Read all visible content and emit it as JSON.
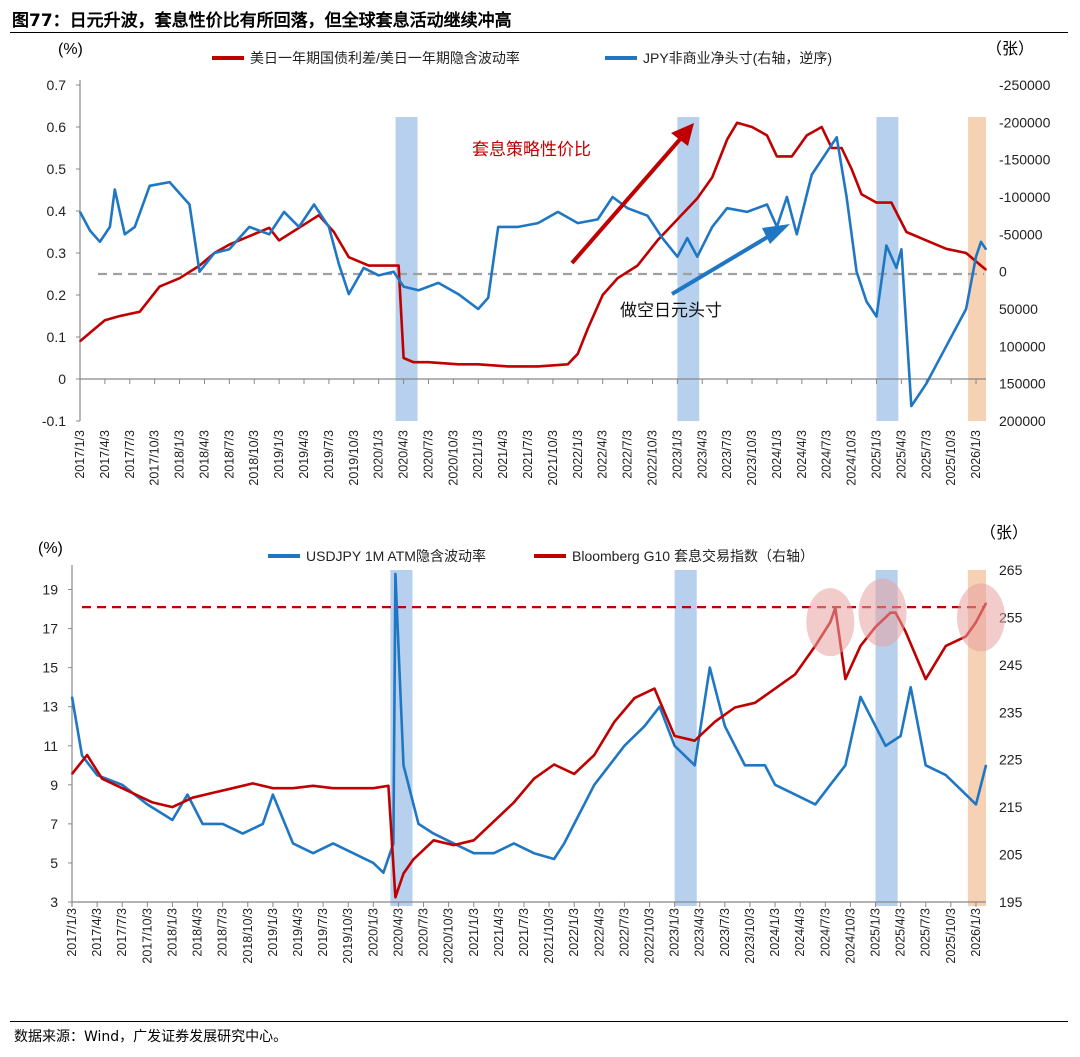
{
  "figure": {
    "title": "图77：日元升波，套息性价比有所回落，但全球套息活动继续冲高",
    "source": "数据来源：Wind，广发证券发展研究中心。"
  },
  "colors": {
    "red": "#c00000",
    "blue": "#1f77c4",
    "shade_blue": "#a9c8ea",
    "shade_orange": "#f5c9a6",
    "dash_gray": "#a0a0a0",
    "circle": "#e8a0a0"
  },
  "chart_data": [
    {
      "type": "line",
      "title": "",
      "left_unit": "(%)",
      "right_unit": "（张）",
      "ylim": [
        -0.1,
        0.7
      ],
      "yticks": [
        "0.7",
        "0.6",
        "0.5",
        "0.4",
        "0.3",
        "0.2",
        "0.1",
        "0",
        "-0.1"
      ],
      "y2lim": [
        200000,
        -250000
      ],
      "y2ticks": [
        "-250000",
        "-200000",
        "-150000",
        "-100000",
        "-50000",
        "0",
        "50000",
        "100000",
        "150000",
        "200000"
      ],
      "x_ticks": [
        "2017/1/3",
        "2017/4/3",
        "2017/7/3",
        "2017/10/3",
        "2018/1/3",
        "2018/4/3",
        "2018/7/3",
        "2018/10/3",
        "2019/1/3",
        "2019/4/3",
        "2019/7/3",
        "2019/10/3",
        "2020/1/3",
        "2020/4/3",
        "2020/7/3",
        "2020/10/3",
        "2021/1/3",
        "2021/4/3",
        "2021/7/3",
        "2021/10/3",
        "2022/1/3",
        "2022/4/3",
        "2022/7/3",
        "2022/10/3",
        "2023/1/3",
        "2023/4/3",
        "2023/7/3",
        "2023/10/3",
        "2024/1/3",
        "2024/4/3",
        "2024/7/3",
        "2024/10/3",
        "2025/1/3",
        "2025/4/3",
        "2025/7/3",
        "2025/10/3",
        "2026/1/3"
      ],
      "series": [
        {
          "name": "美日一年期国债利差/美日一年期隐含波动率",
          "axis": "left",
          "x": [
            2017.0,
            2017.1,
            2017.25,
            2017.4,
            2017.6,
            2017.8,
            2018.0,
            2018.2,
            2018.35,
            2018.5,
            2018.7,
            2018.9,
            2019.0,
            2019.2,
            2019.4,
            2019.55,
            2019.7,
            2019.9,
            2020.0,
            2020.15,
            2020.2,
            2020.25,
            2020.35,
            2020.5,
            2020.8,
            2021.0,
            2021.3,
            2021.6,
            2021.9,
            2022.0,
            2022.1,
            2022.25,
            2022.4,
            2022.6,
            2022.8,
            2023.0,
            2023.2,
            2023.35,
            2023.5,
            2023.6,
            2023.75,
            2023.9,
            2024.0,
            2024.15,
            2024.3,
            2024.45,
            2024.55,
            2024.65,
            2024.75,
            2024.85,
            2025.0,
            2025.15,
            2025.3,
            2025.5,
            2025.7,
            2025.9,
            2026.05,
            2026.1
          ],
          "values": [
            0.09,
            0.11,
            0.14,
            0.15,
            0.16,
            0.22,
            0.24,
            0.27,
            0.3,
            0.32,
            0.34,
            0.36,
            0.33,
            0.36,
            0.39,
            0.35,
            0.29,
            0.27,
            0.27,
            0.27,
            0.27,
            0.05,
            0.04,
            0.04,
            0.035,
            0.035,
            0.03,
            0.03,
            0.035,
            0.06,
            0.12,
            0.2,
            0.24,
            0.27,
            0.33,
            0.38,
            0.43,
            0.48,
            0.57,
            0.61,
            0.6,
            0.58,
            0.53,
            0.53,
            0.58,
            0.6,
            0.55,
            0.55,
            0.5,
            0.44,
            0.42,
            0.42,
            0.35,
            0.33,
            0.31,
            0.3,
            0.27,
            0.26
          ]
        },
        {
          "name": "JPY非商业净头寸(右轴，逆序)",
          "axis": "right",
          "x": [
            2017.0,
            2017.1,
            2017.2,
            2017.3,
            2017.35,
            2017.45,
            2017.55,
            2017.7,
            2017.9,
            2018.1,
            2018.2,
            2018.35,
            2018.5,
            2018.7,
            2018.9,
            2019.05,
            2019.2,
            2019.35,
            2019.5,
            2019.6,
            2019.7,
            2019.85,
            2020.0,
            2020.15,
            2020.25,
            2020.4,
            2020.6,
            2020.8,
            2021.0,
            2021.1,
            2021.2,
            2021.4,
            2021.6,
            2021.8,
            2022.0,
            2022.2,
            2022.35,
            2022.5,
            2022.7,
            2022.85,
            2023.0,
            2023.1,
            2023.2,
            2023.35,
            2023.5,
            2023.7,
            2023.9,
            2024.0,
            2024.1,
            2024.2,
            2024.35,
            2024.5,
            2024.6,
            2024.7,
            2024.8,
            2024.9,
            2025.0,
            2025.1,
            2025.2,
            2025.25,
            2025.35,
            2025.5,
            2025.7,
            2025.9,
            2026.0,
            2026.05,
            2026.1
          ],
          "values": [
            -80000,
            -55000,
            -40000,
            -60000,
            -110000,
            -50000,
            -60000,
            -115000,
            -120000,
            -90000,
            0,
            -25000,
            -30000,
            -60000,
            -50000,
            -80000,
            -60000,
            -90000,
            -60000,
            -10000,
            30000,
            -5000,
            5000,
            0,
            20000,
            25000,
            15000,
            30000,
            50000,
            35000,
            -60000,
            -60000,
            -65000,
            -80000,
            -65000,
            -70000,
            -100000,
            -85000,
            -75000,
            -45000,
            -20000,
            -45000,
            -20000,
            -60000,
            -85000,
            -80000,
            -90000,
            -60000,
            -100000,
            -50000,
            -130000,
            -160000,
            -180000,
            -100000,
            0,
            40000,
            60000,
            -35000,
            -5000,
            -30000,
            180000,
            150000,
            100000,
            50000,
            -20000,
            -40000,
            -30000
          ]
        }
      ],
      "zero_dash_value": 0.25,
      "shaded_periods": [
        {
          "from": 2020.17,
          "to": 2020.39,
          "color": "blue"
        },
        {
          "from": 2023.0,
          "to": 2023.22,
          "color": "blue"
        },
        {
          "from": 2025.0,
          "to": 2025.22,
          "color": "blue"
        },
        {
          "from": 2025.92,
          "to": 2026.1,
          "color": "orange"
        }
      ],
      "annotations": [
        {
          "text": "套息策略性价比",
          "color": "red"
        },
        {
          "text": "做空日元头寸",
          "color": "black"
        }
      ]
    },
    {
      "type": "line",
      "title": "",
      "left_unit": "(%)",
      "right_unit": "（张）",
      "ylim": [
        3,
        20
      ],
      "yticks": [
        "19",
        "17",
        "15",
        "13",
        "11",
        "9",
        "7",
        "5",
        "3"
      ],
      "y2lim": [
        195,
        265
      ],
      "y2ticks": [
        "265",
        "255",
        "245",
        "235",
        "225",
        "215",
        "205",
        "195"
      ],
      "x_ticks": [
        "2017/1/3",
        "2017/4/3",
        "2017/7/3",
        "2017/10/3",
        "2018/1/3",
        "2018/4/3",
        "2018/7/3",
        "2018/10/3",
        "2019/1/3",
        "2019/4/3",
        "2019/7/3",
        "2019/10/3",
        "2020/1/3",
        "2020/4/3",
        "2020/7/3",
        "2020/10/3",
        "2021/1/3",
        "2021/4/3",
        "2021/7/3",
        "2021/10/3",
        "2022/1/3",
        "2022/4/3",
        "2022/7/3",
        "2022/10/3",
        "2023/1/3",
        "2023/4/3",
        "2023/7/3",
        "2023/10/3",
        "2024/1/3",
        "2024/4/3",
        "2024/7/3",
        "2024/10/3",
        "2025/1/3",
        "2025/4/3",
        "2025/7/3",
        "2025/10/3",
        "2026/1/3"
      ],
      "series": [
        {
          "name": "USDJPY 1M ATM隐含波动率",
          "axis": "left",
          "x": [
            2017.0,
            2017.1,
            2017.25,
            2017.5,
            2017.75,
            2018.0,
            2018.15,
            2018.3,
            2018.5,
            2018.7,
            2018.9,
            2019.0,
            2019.2,
            2019.4,
            2019.6,
            2019.8,
            2020.0,
            2020.1,
            2020.2,
            2020.22,
            2020.3,
            2020.45,
            2020.6,
            2020.8,
            2021.0,
            2021.2,
            2021.4,
            2021.6,
            2021.8,
            2021.9,
            2022.0,
            2022.2,
            2022.35,
            2022.5,
            2022.7,
            2022.85,
            2023.0,
            2023.2,
            2023.35,
            2023.5,
            2023.7,
            2023.9,
            2024.0,
            2024.2,
            2024.4,
            2024.55,
            2024.7,
            2024.85,
            2025.0,
            2025.1,
            2025.25,
            2025.35,
            2025.5,
            2025.7,
            2025.9,
            2026.0,
            2026.05,
            2026.1
          ],
          "values": [
            13.5,
            10.5,
            9.5,
            9,
            8,
            7.2,
            8.5,
            7,
            7,
            6.5,
            7,
            8.5,
            6,
            5.5,
            6,
            5.5,
            5,
            4.5,
            6,
            19.8,
            10,
            7,
            6.5,
            6,
            5.5,
            5.5,
            6,
            5.5,
            5.2,
            6,
            7,
            9,
            10,
            11,
            12,
            13,
            11,
            10,
            15,
            12,
            10,
            10,
            9,
            8.5,
            8,
            9,
            10,
            13.5,
            12,
            11,
            11.5,
            14,
            10,
            9.5,
            8.5,
            8,
            9,
            10
          ]
        },
        {
          "name": "Bloomberg G10 套息交易指数（右轴）",
          "axis": "right",
          "x": [
            2017.0,
            2017.15,
            2017.3,
            2017.5,
            2017.8,
            2018.0,
            2018.2,
            2018.4,
            2018.6,
            2018.8,
            2019.0,
            2019.2,
            2019.4,
            2019.6,
            2019.8,
            2020.0,
            2020.15,
            2020.22,
            2020.3,
            2020.4,
            2020.6,
            2020.8,
            2021.0,
            2021.2,
            2021.4,
            2021.6,
            2021.8,
            2022.0,
            2022.2,
            2022.4,
            2022.6,
            2022.8,
            2023.0,
            2023.2,
            2023.4,
            2023.6,
            2023.8,
            2024.0,
            2024.2,
            2024.4,
            2024.55,
            2024.6,
            2024.7,
            2024.85,
            2025.0,
            2025.15,
            2025.2,
            2025.3,
            2025.5,
            2025.7,
            2025.9,
            2026.0,
            2026.1
          ],
          "values": [
            222,
            226,
            221,
            219,
            216,
            215,
            217,
            218,
            219,
            220,
            219,
            219,
            219.5,
            219,
            219,
            219,
            219.5,
            196,
            201,
            204,
            208,
            207,
            208,
            212,
            216,
            221,
            224,
            222,
            226,
            233,
            238,
            240,
            230,
            229,
            233,
            236,
            237,
            240,
            243,
            249,
            254,
            257,
            242,
            249,
            253,
            256,
            256,
            252,
            242,
            249,
            251,
            254,
            258
          ]
        }
      ],
      "ref_dash_value": 18.1,
      "shaded_periods": [
        {
          "from": 2020.17,
          "to": 2020.39,
          "color": "blue"
        },
        {
          "from": 2023.0,
          "to": 2023.22,
          "color": "blue"
        },
        {
          "from": 2025.0,
          "to": 2025.22,
          "color": "blue"
        },
        {
          "from": 2025.92,
          "to": 2026.1,
          "color": "orange"
        }
      ],
      "highlight_circles": [
        {
          "x": 2024.55,
          "y2": 254
        },
        {
          "x": 2025.07,
          "y2": 256
        },
        {
          "x": 2026.05,
          "y2": 255
        }
      ]
    }
  ]
}
